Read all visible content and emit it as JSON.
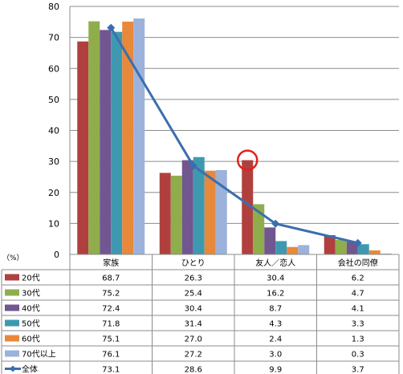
{
  "chart_data": {
    "type": "bar",
    "unit_label": "（%）",
    "categories": [
      "家族",
      "ひとり",
      "友人／恋人",
      "会社の同僚"
    ],
    "ylim": [
      0,
      80
    ],
    "yticks": [
      0,
      10,
      20,
      30,
      40,
      50,
      60,
      70,
      80
    ],
    "grid": true,
    "series": [
      {
        "name": "20代",
        "color": "#B0403E",
        "values": [
          68.7,
          26.3,
          30.4,
          6.2
        ]
      },
      {
        "name": "30代",
        "color": "#8FAE4B",
        "values": [
          75.2,
          25.4,
          16.2,
          4.7
        ]
      },
      {
        "name": "40代",
        "color": "#71568F",
        "values": [
          72.4,
          30.4,
          8.7,
          4.1
        ]
      },
      {
        "name": "50代",
        "color": "#3E99B0",
        "values": [
          71.8,
          31.4,
          4.3,
          3.3
        ]
      },
      {
        "name": "60代",
        "color": "#E8883A",
        "values": [
          75.1,
          27.0,
          2.4,
          1.3
        ]
      },
      {
        "name": "70代以上",
        "color": "#9CB2DA",
        "values": [
          76.1,
          27.2,
          3.0,
          0.3
        ]
      }
    ],
    "line_series": {
      "name": "全体",
      "color": "#3C6EAE",
      "values": [
        73.1,
        28.6,
        9.9,
        3.7
      ]
    },
    "table_values": [
      [
        "68.7",
        "26.3",
        "30.4",
        "6.2"
      ],
      [
        "75.2",
        "25.4",
        "16.2",
        "4.7"
      ],
      [
        "72.4",
        "30.4",
        "8.7",
        "4.1"
      ],
      [
        "71.8",
        "31.4",
        "4.3",
        "3.3"
      ],
      [
        "75.1",
        "27.0",
        "2.4",
        "1.3"
      ],
      [
        "76.1",
        "27.2",
        "3.0",
        "0.3"
      ],
      [
        "73.1",
        "28.6",
        "9.9",
        "3.7"
      ]
    ],
    "highlight": {
      "series": "20代",
      "category": "友人／恋人",
      "color": "#E02020"
    }
  }
}
